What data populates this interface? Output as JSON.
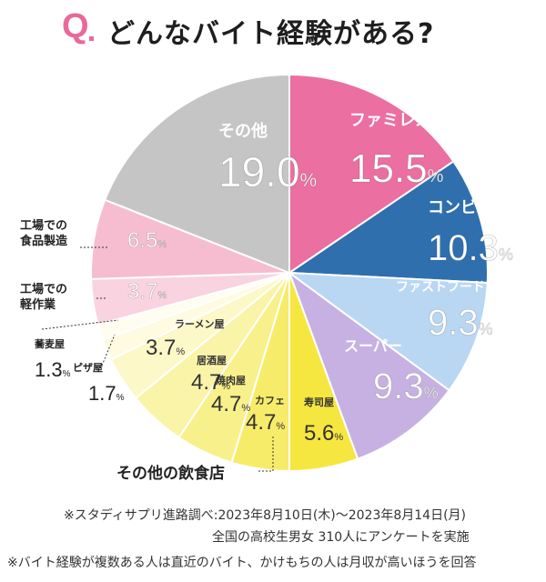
{
  "title": {
    "q": "Q",
    "text": "どんなバイト経験がある?"
  },
  "chart_data": {
    "type": "pie",
    "unit": "%",
    "slices": [
      {
        "label": "ファミレス",
        "value": 15.5,
        "value_text": "15.5",
        "color": "#eb6fa0"
      },
      {
        "label": "コンビニ",
        "value": 10.3,
        "value_text": "10.3",
        "color": "#2f6fae"
      },
      {
        "label": "ファストフード",
        "value": 9.3,
        "value_text": "9.3",
        "color": "#b9d7f2"
      },
      {
        "label": "スーパー",
        "value": 9.3,
        "value_text": "9.3",
        "color": "#c7b1e2"
      },
      {
        "label": "寿司屋",
        "value": 5.6,
        "value_text": "5.6",
        "color": "#f6e640"
      },
      {
        "label": "カフェ",
        "value": 4.7,
        "value_text": "4.7",
        "color": "#f7ec6a"
      },
      {
        "label": "焼肉屋",
        "value": 4.7,
        "value_text": "4.7",
        "color": "#f8f08a"
      },
      {
        "label": "居酒屋",
        "value": 4.7,
        "value_text": "4.7",
        "color": "#faf4a8"
      },
      {
        "label": "ラーメン屋",
        "value": 3.7,
        "value_text": "3.7",
        "color": "#fcf8c8"
      },
      {
        "label": "ピザ屋",
        "value": 1.7,
        "value_text": "1.7",
        "color": "#fefbe0"
      },
      {
        "label": "蕎麦屋",
        "value": 1.3,
        "value_text": "1.3",
        "color": "#fefdf0"
      },
      {
        "label": "工場での軽作業",
        "value": 3.7,
        "value_text": "3.7",
        "color": "#f9d3df"
      },
      {
        "label": "工場での食品製造",
        "value": 6.5,
        "value_text": "6.5",
        "color": "#f6bdd0"
      },
      {
        "label": "その他",
        "value": 19.0,
        "value_text": "19.0",
        "color": "#c5c5c5"
      }
    ],
    "group_label": "その他の飲食店"
  },
  "footer": {
    "line1": "※スタディサプリ進路調べ:2023年8月10日(木)〜2023年8月14日(月)",
    "line2": "全国の高校生男女 310人にアンケートを実施",
    "line3": "※バイト経験が複数ある人は直近のバイト、かけもちの人は月収が高いほうを回答"
  }
}
